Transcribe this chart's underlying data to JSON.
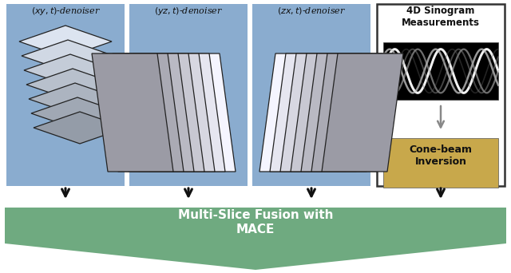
{
  "bg_color": "#ffffff",
  "blue_panel_color": "#8aaccf",
  "green_color": "#6faa80",
  "black_color": "#1a1a1a",
  "gray_arrow_color": "#888888",
  "cone_beam_color": "#c8a84b",
  "panel_labels": [
    "$(xy,t)$-denoiser",
    "$(yz,t)$-denoiser",
    "$(zx,t)$-denoiser"
  ],
  "sinogram_title": "4D Sinogram\nMeasurements",
  "cone_beam_label": "Cone-beam\nInversion",
  "fusion_label": "Multi-Slice Fusion with\nMACE",
  "slice_face_color": "#dce8f4",
  "slice_edge_color": "#222222",
  "num_slices": 7
}
